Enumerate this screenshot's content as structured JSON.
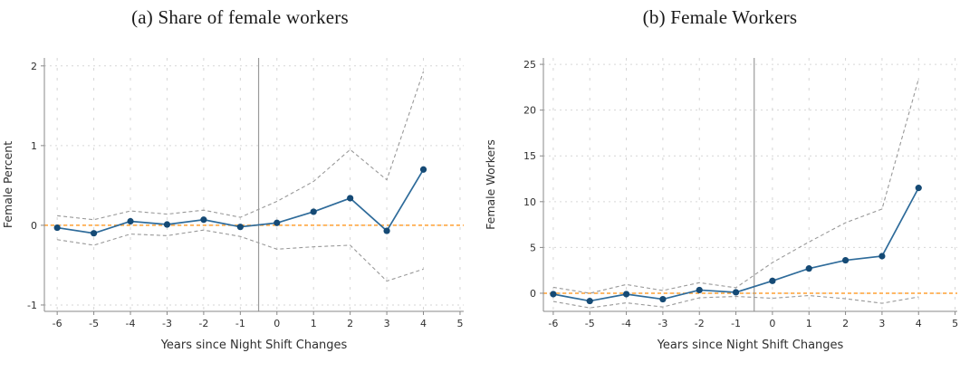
{
  "page": {
    "background": "#ffffff"
  },
  "colors": {
    "estimate_line": "#2e6b9a",
    "estimate_marker": "#154a75",
    "ci_line": "#999999",
    "zero_line": "#ffa033",
    "event_line": "#9b9b9b",
    "grid": "#d6d6d6",
    "axis": "#888888",
    "text": "#2f2f2f",
    "title_text": "#1a1a1a"
  },
  "chart_data": [
    {
      "type": "line",
      "title": "(a) Share of female workers",
      "xlabel": "Years since Night Shift Changes",
      "ylabel": "Female Percent",
      "x": [
        -6,
        -5,
        -4,
        -3,
        -2,
        -1,
        0,
        1,
        2,
        3,
        4
      ],
      "series": [
        {
          "name": "estimate",
          "role": "estimate",
          "values": [
            -0.03,
            -0.1,
            0.05,
            0.01,
            0.07,
            -0.02,
            0.03,
            0.17,
            0.34,
            -0.07,
            0.7
          ]
        },
        {
          "name": "ci-upper",
          "role": "ci",
          "values": [
            0.12,
            0.07,
            0.18,
            0.14,
            0.19,
            0.1,
            0.3,
            0.55,
            0.95,
            0.57,
            1.93
          ]
        },
        {
          "name": "ci-lower",
          "role": "ci",
          "values": [
            -0.18,
            -0.25,
            -0.11,
            -0.13,
            -0.06,
            -0.14,
            -0.3,
            -0.27,
            -0.25,
            -0.7,
            -0.55
          ]
        }
      ],
      "xticks": [
        -6,
        -5,
        -4,
        -3,
        -2,
        -1,
        0,
        1,
        2,
        3,
        4,
        5
      ],
      "yticks": [
        -1,
        0,
        1,
        2
      ],
      "xlim": [
        -6.35,
        5.1
      ],
      "ylim": [
        -1.08,
        2.1
      ],
      "ref_vline_x": -0.5,
      "ref_hline_y": 0,
      "grid": true,
      "legend": "none"
    },
    {
      "type": "line",
      "title": "(b) Female Workers",
      "xlabel": "Years since Night Shift Changes",
      "ylabel": "Female Workers",
      "x": [
        -6,
        -5,
        -4,
        -3,
        -2,
        -1,
        0,
        1,
        2,
        3,
        4
      ],
      "series": [
        {
          "name": "estimate",
          "role": "estimate",
          "values": [
            -0.1,
            -0.85,
            -0.1,
            -0.65,
            0.35,
            0.1,
            1.35,
            2.7,
            3.6,
            4.05,
            11.5
          ]
        },
        {
          "name": "ci-upper",
          "role": "ci",
          "values": [
            0.65,
            0.0,
            0.95,
            0.3,
            1.15,
            0.6,
            3.35,
            5.6,
            7.7,
            9.2,
            23.4
          ]
        },
        {
          "name": "ci-lower",
          "role": "ci",
          "values": [
            -0.9,
            -1.6,
            -1.05,
            -1.5,
            -0.5,
            -0.35,
            -0.55,
            -0.25,
            -0.6,
            -1.1,
            -0.4
          ]
        }
      ],
      "xticks": [
        -6,
        -5,
        -4,
        -3,
        -2,
        -1,
        0,
        1,
        2,
        3,
        4,
        5
      ],
      "yticks": [
        0,
        5,
        10,
        15,
        20,
        25
      ],
      "xlim": [
        -6.27,
        5.06
      ],
      "ylim": [
        -1.98,
        25.7
      ],
      "ref_vline_x": -0.5,
      "ref_hline_y": 0,
      "grid": true,
      "legend": "none"
    }
  ]
}
